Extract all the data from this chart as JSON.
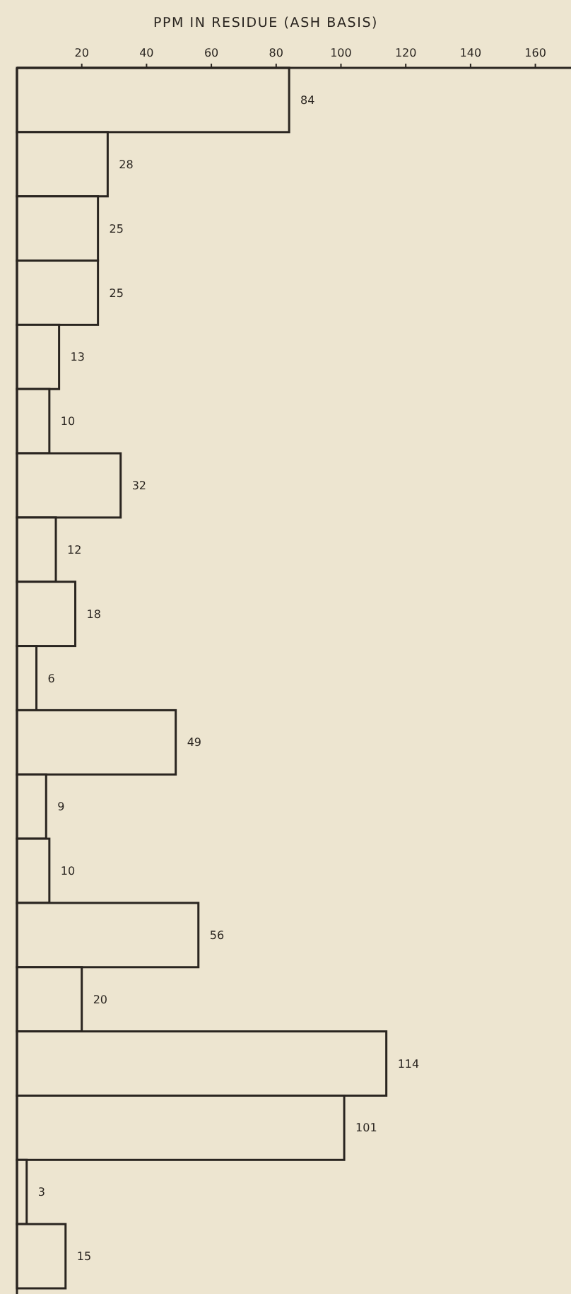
{
  "chart_data": {
    "type": "bar",
    "orientation": "horizontal",
    "xlabel": "PPM IN RESIDUE (ASH BASIS)",
    "categories": [
      null,
      null,
      null,
      null,
      null,
      null,
      null,
      null,
      null,
      null,
      null,
      null,
      null,
      null,
      null,
      null,
      null,
      null,
      null
    ],
    "values": [
      84,
      28,
      25,
      25,
      13,
      10,
      32,
      12,
      18,
      6,
      49,
      9,
      10,
      56,
      20,
      114,
      101,
      3,
      15
    ],
    "color": "#ede5d0",
    "xlim": [
      0,
      171
    ],
    "xticks": [
      20,
      40,
      60,
      80,
      100,
      120,
      140,
      160
    ],
    "data_labels": true,
    "grid": false
  }
}
